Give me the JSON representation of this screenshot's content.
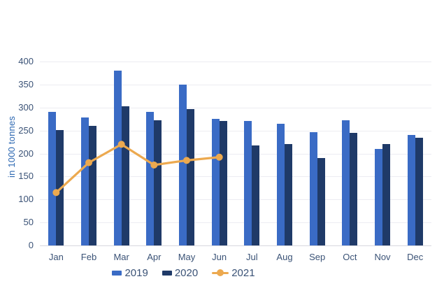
{
  "chart_data": {
    "type": "combo-bar-line",
    "categories": [
      "Jan",
      "Feb",
      "Mar",
      "Apr",
      "May",
      "Jun",
      "Jul",
      "Aug",
      "Sep",
      "Oct",
      "Nov",
      "Dec"
    ],
    "series": [
      {
        "name": "2019",
        "type": "bar",
        "color": "#3A6BC5",
        "values": [
          290,
          278,
          380,
          290,
          350,
          275,
          270,
          265,
          247,
          273,
          210,
          240
        ]
      },
      {
        "name": "2020",
        "type": "bar",
        "color": "#1F3A68",
        "values": [
          251,
          260,
          302,
          273,
          297,
          270,
          218,
          220,
          190,
          245,
          220,
          235
        ]
      },
      {
        "name": "2021",
        "type": "line",
        "color": "#ECA94F",
        "values": [
          115,
          180,
          220,
          175,
          185,
          192,
          null,
          null,
          null,
          null,
          null,
          null
        ]
      }
    ],
    "title": "",
    "xlabel": "",
    "ylabel": "in 1000 tonnes",
    "ylim": [
      0,
      400
    ],
    "ytick_step": 50,
    "grid": true,
    "legend_position": "bottom"
  },
  "colors": {
    "tick_text": "#3A5276",
    "axis_title_text": "#2D68B2",
    "grid_line": "#ECECF2",
    "axis_line": "#D7D7DE"
  }
}
